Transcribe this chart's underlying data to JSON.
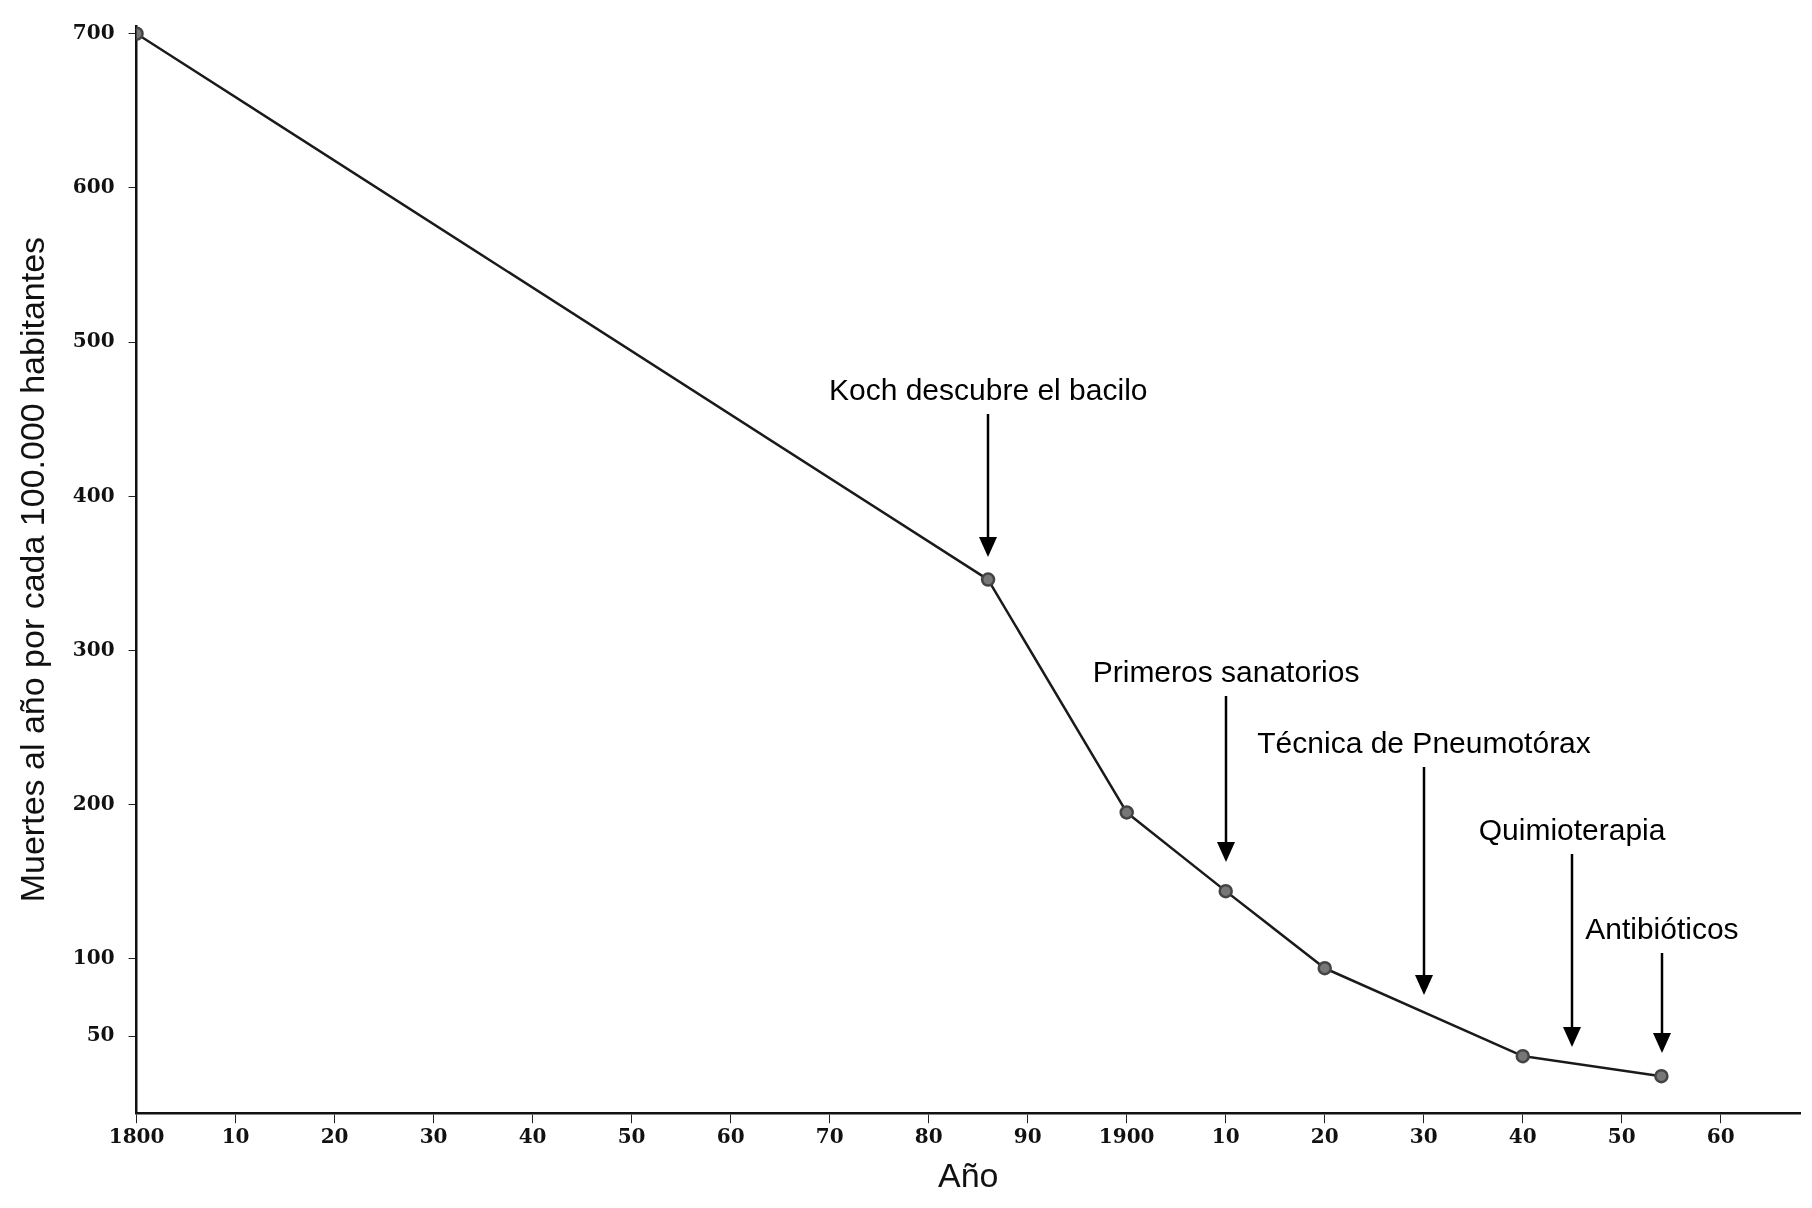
{
  "chart_data": {
    "type": "line",
    "xlabel": "Año",
    "ylabel": "Muertes al año por cada 100.000 habitantes",
    "x": [
      1800,
      1886,
      1900,
      1910,
      1920,
      1940,
      1954
    ],
    "series": [
      {
        "color": "#1a1a1a",
        "values": [
          700,
          346,
          195,
          144,
          94,
          37,
          24
        ]
      }
    ],
    "xlim": [
      1800,
      1968
    ],
    "ylim": [
      0,
      705
    ],
    "xticks": [
      1800,
      {
        "value": 1810,
        "label": "10"
      },
      {
        "value": 1820,
        "label": "20"
      },
      {
        "value": 1830,
        "label": "30"
      },
      {
        "value": 1840,
        "label": "40"
      },
      {
        "value": 1850,
        "label": "50"
      },
      {
        "value": 1860,
        "label": "60"
      },
      {
        "value": 1870,
        "label": "70"
      },
      {
        "value": 1880,
        "label": "80"
      },
      {
        "value": 1890,
        "label": "90"
      },
      1900,
      {
        "value": 1910,
        "label": "10"
      },
      {
        "value": 1920,
        "label": "20"
      },
      {
        "value": 1930,
        "label": "30"
      },
      {
        "value": 1940,
        "label": "40"
      },
      {
        "value": 1950,
        "label": "50"
      },
      {
        "value": 1960,
        "label": "60"
      }
    ],
    "yticks": [
      50,
      100,
      200,
      300,
      400,
      500,
      600,
      700
    ],
    "marker": "circle",
    "grid": false,
    "legend": false,
    "annotations": [
      "Koch descubre el bacilo",
      "Primeros sanatorios",
      "Técnica de Pneumotórax",
      "Quimioterapia",
      "Antibióticos"
    ]
  }
}
